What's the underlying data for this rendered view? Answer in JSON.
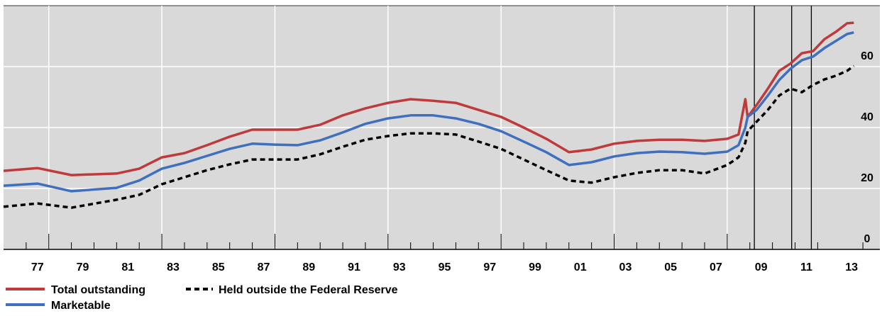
{
  "chart_data": {
    "type": "line",
    "x": [
      1976,
      1977.5,
      1979,
      1981,
      1982,
      1983,
      1984,
      1985,
      1986,
      1987,
      1988,
      1989,
      1990,
      1991,
      1992,
      1993,
      1994,
      1995,
      1996,
      1997,
      1998,
      1999,
      2000,
      2001,
      2002,
      2003,
      2004,
      2005,
      2006,
      2007,
      2008,
      2008.5,
      2008.8,
      2008.9,
      2009.3,
      2009.8,
      2010.3,
      2010.8,
      2011.3,
      2011.8,
      2012.3,
      2012.8,
      2013.3,
      2013.6
    ],
    "series": [
      {
        "name": "Total outstanding",
        "color": "#c0393b",
        "style": "solid",
        "values": [
          25.8,
          26.7,
          24.4,
          24.9,
          26.5,
          30.2,
          31.6,
          34.2,
          37,
          39.3,
          39.3,
          39.3,
          40.9,
          44,
          46.3,
          48.1,
          49.3,
          48.8,
          48.1,
          45.8,
          43.5,
          40,
          36.3,
          31.9,
          32.8,
          34.7,
          35.6,
          36,
          36,
          35.6,
          36.3,
          37.7,
          49.3,
          43.5,
          47.4,
          52.8,
          58.6,
          61,
          64.4,
          65.1,
          69,
          71.4,
          74.2,
          74.4
        ]
      },
      {
        "name": "Marketable",
        "color": "#3f6fbf",
        "style": "solid",
        "values": [
          20.9,
          21.6,
          19.1,
          20.2,
          22.6,
          26.5,
          28.4,
          30.7,
          33,
          34.7,
          34.4,
          34.2,
          35.8,
          38.4,
          41.2,
          43,
          44,
          44,
          43,
          41.2,
          38.8,
          35.4,
          31.9,
          27.7,
          28.6,
          30.5,
          31.6,
          32.1,
          31.9,
          31.4,
          32.1,
          34.2,
          40,
          43.5,
          45.8,
          50.5,
          55.6,
          59.3,
          62.1,
          63.3,
          66.1,
          68.4,
          70.7,
          71.2
        ]
      },
      {
        "name": "Held outside the Federal Reserve",
        "color": "#000000",
        "style": "dashed",
        "values": [
          14,
          15.1,
          13.7,
          16.3,
          17.9,
          21.4,
          23.7,
          26,
          27.9,
          29.5,
          29.5,
          29.5,
          31.2,
          33.7,
          36,
          37.2,
          38.1,
          38.1,
          37.7,
          35.4,
          33,
          29.5,
          26,
          22.6,
          21.9,
          23.7,
          25.1,
          26,
          26,
          24.9,
          27.7,
          30.2,
          35,
          38.8,
          41.9,
          45.8,
          50.5,
          52.8,
          51.6,
          54,
          55.8,
          57,
          58.6,
          60.2
        ]
      }
    ],
    "xlim": [
      1976,
      2014.75
    ],
    "xticks": [
      {
        "value": 1977.5,
        "label": "77"
      },
      {
        "value": 1979.5,
        "label": "79"
      },
      {
        "value": 1981.5,
        "label": "81"
      },
      {
        "value": 1983.5,
        "label": "83"
      },
      {
        "value": 1985.5,
        "label": "85"
      },
      {
        "value": 1987.5,
        "label": "87"
      },
      {
        "value": 1989.5,
        "label": "89"
      },
      {
        "value": 1991.5,
        "label": "91"
      },
      {
        "value": 1993.5,
        "label": "93"
      },
      {
        "value": 1995.5,
        "label": "95"
      },
      {
        "value": 1997.5,
        "label": "97"
      },
      {
        "value": 1999.5,
        "label": "99"
      },
      {
        "value": 2001.5,
        "label": "01"
      },
      {
        "value": 2003.5,
        "label": "03"
      },
      {
        "value": 2005.5,
        "label": "05"
      },
      {
        "value": 2007.5,
        "label": "07"
      },
      {
        "value": 2009.5,
        "label": "09"
      },
      {
        "value": 2011.5,
        "label": "11"
      },
      {
        "value": 2013.5,
        "label": "13"
      }
    ],
    "xminorticks": [
      1977,
      1979,
      1980,
      1981,
      1982,
      1984,
      1985,
      1986,
      1987,
      1989,
      1990,
      1991,
      1992,
      1994,
      1995,
      1996,
      1997,
      1999,
      2000,
      2001,
      2002,
      2004,
      2005,
      2006,
      2007,
      2009,
      2010,
      2011,
      2012,
      2014
    ],
    "xgrid": [
      1978,
      1983,
      1988,
      1993,
      1998,
      2003,
      2008
    ],
    "event_lines": [
      2009.2,
      2010.85,
      2011.72
    ],
    "ylim": [
      0,
      80
    ],
    "yticks": [
      0,
      20,
      40,
      60
    ],
    "grid": true,
    "legend": "bottom"
  }
}
